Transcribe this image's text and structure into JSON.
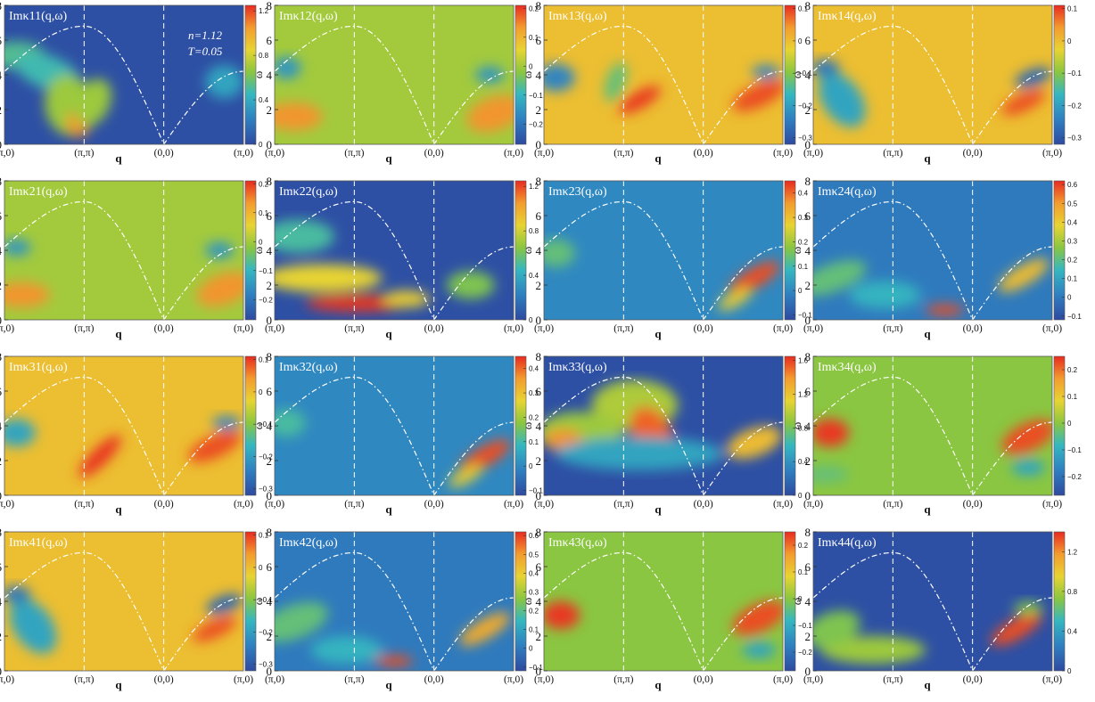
{
  "figure": {
    "annotation_n": "n=1.12",
    "annotation_T": "T=0.05"
  },
  "axes": {
    "y_label": "ω",
    "x_label": "q",
    "x_ticklabels": [
      "(π,0)",
      "(π,π)",
      "(0,0)",
      "(π,0)"
    ],
    "y_ticks": [
      0,
      2,
      4,
      6,
      8
    ]
  },
  "colormap": {
    "low": "#2e4aa0",
    "mid": "#8ac640",
    "high": "#e82a20",
    "dashdot_line": "#ffffff"
  },
  "chart_data": [
    {
      "type": "heatmap",
      "title": "Imκ11(q,ω)",
      "ylim": [
        0,
        8
      ],
      "colorbar_ticks": [
        "1.2",
        "0.8",
        "0.4",
        "0"
      ],
      "colorbar_range": [
        0,
        1.25
      ]
    },
    {
      "type": "heatmap",
      "title": "Imκ12(q,ω)",
      "ylim": [
        0,
        8
      ],
      "colorbar_ticks": [
        "0.2",
        "0.1",
        "0",
        "−0.1",
        "−0.2"
      ],
      "colorbar_range": [
        -0.27,
        0.21
      ]
    },
    {
      "type": "heatmap",
      "title": "Imκ13(q,ω)",
      "ylim": [
        0,
        8
      ],
      "colorbar_ticks": [
        "0.1",
        "0",
        "−0.1",
        "−0.2",
        "−0.3"
      ],
      "colorbar_range": [
        -0.32,
        0.11
      ]
    },
    {
      "type": "heatmap",
      "title": "Imκ14(q,ω)",
      "ylim": [
        0,
        8
      ],
      "colorbar_ticks": [
        "0.1",
        "0",
        "−0.1",
        "−0.2",
        "−0.3"
      ],
      "colorbar_range": [
        -0.32,
        0.11
      ]
    },
    {
      "type": "heatmap",
      "title": "Imκ21(q,ω)",
      "ylim": [
        0,
        8
      ],
      "colorbar_ticks": [
        "0.2",
        "0.1",
        "0",
        "−0.1",
        "−0.2"
      ],
      "colorbar_range": [
        -0.27,
        0.21
      ]
    },
    {
      "type": "heatmap",
      "title": "Imκ22(q,ω)",
      "ylim": [
        0,
        8
      ],
      "colorbar_ticks": [
        "1.2",
        "0.8",
        "0.4",
        "0"
      ],
      "colorbar_range": [
        0,
        1.25
      ]
    },
    {
      "type": "heatmap",
      "title": "Imκ23(q,ω)",
      "ylim": [
        0,
        8
      ],
      "colorbar_ticks": [
        "0.4",
        "0.3",
        "0.2",
        "0.1",
        "0",
        "−0.1"
      ],
      "colorbar_range": [
        -0.12,
        0.45
      ]
    },
    {
      "type": "heatmap",
      "title": "Imκ24(q,ω)",
      "ylim": [
        0,
        8
      ],
      "colorbar_ticks": [
        "0.6",
        "0.5",
        "0.4",
        "0.3",
        "0.2",
        "0.1",
        "0",
        "−0.1"
      ],
      "colorbar_range": [
        -0.12,
        0.62
      ]
    },
    {
      "type": "heatmap",
      "title": "Imκ31(q,ω)",
      "ylim": [
        0,
        8
      ],
      "colorbar_ticks": [
        "0.1",
        "0",
        "−0.1",
        "−0.2",
        "−0.3"
      ],
      "colorbar_range": [
        -0.32,
        0.11
      ]
    },
    {
      "type": "heatmap",
      "title": "Imκ32(q,ω)",
      "ylim": [
        0,
        8
      ],
      "colorbar_ticks": [
        "0.4",
        "0.3",
        "0.2",
        "0.1",
        "0",
        "−0.1"
      ],
      "colorbar_range": [
        -0.12,
        0.45
      ]
    },
    {
      "type": "heatmap",
      "title": "Imκ33(q,ω)",
      "ylim": [
        0,
        8
      ],
      "colorbar_ticks": [
        "1.6",
        "1.2",
        "0.8",
        "0.4",
        "0"
      ],
      "colorbar_range": [
        0,
        1.65
      ]
    },
    {
      "type": "heatmap",
      "title": "Imκ34(q,ω)",
      "ylim": [
        0,
        8
      ],
      "colorbar_ticks": [
        "0.2",
        "0.1",
        "0",
        "−0.1",
        "−0.2"
      ],
      "colorbar_range": [
        -0.27,
        0.25
      ]
    },
    {
      "type": "heatmap",
      "title": "Imκ41(q,ω)",
      "ylim": [
        0,
        8
      ],
      "colorbar_ticks": [
        "0.1",
        "0",
        "−0.1",
        "−0.2",
        "−0.3"
      ],
      "colorbar_range": [
        -0.32,
        0.11
      ]
    },
    {
      "type": "heatmap",
      "title": "Imκ42(q,ω)",
      "ylim": [
        0,
        8
      ],
      "colorbar_ticks": [
        "0.6",
        "0.5",
        "0.4",
        "0.3",
        "0.2",
        "0.1",
        "0",
        "−0.1"
      ],
      "colorbar_range": [
        -0.12,
        0.62
      ]
    },
    {
      "type": "heatmap",
      "title": "Imκ43(q,ω)",
      "ylim": [
        0,
        8
      ],
      "colorbar_ticks": [
        "0.2",
        "0.1",
        "0",
        "−0.1",
        "−0.2"
      ],
      "colorbar_range": [
        -0.27,
        0.25
      ]
    },
    {
      "type": "heatmap",
      "title": "Imκ44(q,ω)",
      "ylim": [
        0,
        8
      ],
      "colorbar_ticks": [
        "1.2",
        "0.8",
        "0.4",
        "0"
      ],
      "colorbar_range": [
        0,
        1.4
      ]
    }
  ]
}
